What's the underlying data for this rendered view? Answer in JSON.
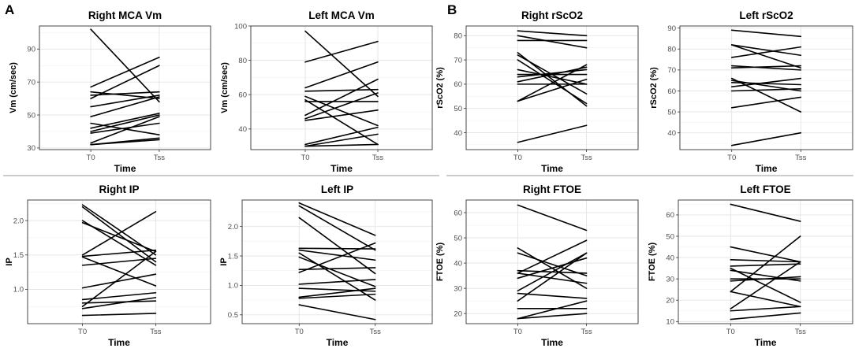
{
  "panel_labels": [
    "A",
    "B"
  ],
  "chart_data": [
    {
      "type": "line",
      "title": "Right MCA Vm",
      "xlabel": "Time",
      "ylabel": "Vm (cm/sec)",
      "x": [
        "T0",
        "Tss"
      ],
      "ylim": [
        29,
        104
      ],
      "yticks": [
        30,
        50,
        70,
        90
      ],
      "series": [
        [
          102,
          58
        ],
        [
          67,
          85
        ],
        [
          64,
          60
        ],
        [
          62,
          64
        ],
        [
          60,
          80
        ],
        [
          55,
          62
        ],
        [
          49,
          61
        ],
        [
          45,
          38
        ],
        [
          42,
          51
        ],
        [
          40,
          50
        ],
        [
          39,
          45
        ],
        [
          33,
          49
        ],
        [
          32,
          36
        ],
        [
          32,
          35
        ]
      ]
    },
    {
      "type": "line",
      "title": "Left MCA Vm",
      "xlabel": "Time",
      "ylabel": "Vm (cm/sec)",
      "x": [
        "T0",
        "Tss"
      ],
      "ylim": [
        28,
        100
      ],
      "yticks": [
        40,
        60,
        80,
        100
      ],
      "series": [
        [
          97,
          59
        ],
        [
          79,
          91
        ],
        [
          64,
          79
        ],
        [
          62,
          63
        ],
        [
          59,
          42
        ],
        [
          57,
          31
        ],
        [
          56,
          56
        ],
        [
          48,
          69
        ],
        [
          46,
          61
        ],
        [
          45,
          51
        ],
        [
          31,
          41
        ],
        [
          30,
          37
        ],
        [
          30,
          31
        ]
      ]
    },
    {
      "type": "line",
      "title": "Right rScO2",
      "xlabel": "Time",
      "ylabel": "rScO2 (%)",
      "x": [
        "T0",
        "Tss"
      ],
      "ylim": [
        33,
        84
      ],
      "yticks": [
        40,
        50,
        60,
        70,
        80
      ],
      "series": [
        [
          82,
          80
        ],
        [
          80,
          75
        ],
        [
          78,
          78
        ],
        [
          73,
          51
        ],
        [
          72,
          56
        ],
        [
          70,
          52
        ],
        [
          66,
          60
        ],
        [
          64,
          64
        ],
        [
          63,
          66
        ],
        [
          61,
          67
        ],
        [
          60,
          60
        ],
        [
          53,
          68
        ],
        [
          53,
          62
        ],
        [
          36,
          43
        ]
      ]
    },
    {
      "type": "line",
      "title": "Left rScO2",
      "xlabel": "Time",
      "ylabel": "rScO2 (%)",
      "x": [
        "T0",
        "Tss"
      ],
      "ylim": [
        32,
        91
      ],
      "yticks": [
        40,
        50,
        60,
        70,
        80,
        90
      ],
      "series": [
        [
          89,
          86
        ],
        [
          82,
          71
        ],
        [
          82,
          77
        ],
        [
          76,
          81
        ],
        [
          72,
          70
        ],
        [
          71,
          72
        ],
        [
          66,
          50
        ],
        [
          65,
          60
        ],
        [
          64,
          63
        ],
        [
          62,
          66
        ],
        [
          60,
          61
        ],
        [
          52,
          57
        ],
        [
          34,
          40
        ]
      ]
    },
    {
      "type": "line",
      "title": "Right IP",
      "xlabel": "Time",
      "ylabel": "IP",
      "x": [
        "T0",
        "Tss"
      ],
      "ylim": [
        0.5,
        2.3
      ],
      "yticks": [
        1.0,
        1.5,
        2.0
      ],
      "series": [
        [
          2.23,
          1.5
        ],
        [
          2.2,
          1.4
        ],
        [
          2.0,
          1.35
        ],
        [
          1.97,
          1.55
        ],
        [
          1.5,
          2.13
        ],
        [
          1.48,
          1.57
        ],
        [
          1.47,
          1.05
        ],
        [
          1.35,
          1.45
        ],
        [
          1.02,
          1.22
        ],
        [
          0.85,
          0.95
        ],
        [
          0.8,
          0.83
        ],
        [
          0.75,
          1.55
        ],
        [
          0.72,
          0.88
        ],
        [
          0.62,
          0.65
        ]
      ]
    },
    {
      "type": "line",
      "title": "Left IP",
      "xlabel": "Time",
      "ylabel": "IP",
      "x": [
        "T0",
        "Tss"
      ],
      "ylim": [
        0.35,
        2.45
      ],
      "yticks": [
        0.5,
        1.0,
        1.5,
        2.0
      ],
      "series": [
        [
          2.4,
          1.85
        ],
        [
          2.35,
          1.6
        ],
        [
          2.15,
          1.2
        ],
        [
          1.63,
          1.62
        ],
        [
          1.6,
          1.43
        ],
        [
          1.55,
          0.75
        ],
        [
          1.48,
          0.98
        ],
        [
          1.27,
          1.3
        ],
        [
          1.22,
          1.72
        ],
        [
          1.02,
          1.1
        ],
        [
          0.95,
          0.9
        ],
        [
          0.8,
          0.95
        ],
        [
          0.78,
          0.85
        ],
        [
          0.67,
          0.42
        ]
      ]
    },
    {
      "type": "line",
      "title": "Right FTOE",
      "xlabel": "Time",
      "ylabel": "FTOE (%)",
      "x": [
        "T0",
        "Tss"
      ],
      "ylim": [
        16,
        65
      ],
      "yticks": [
        20,
        30,
        40,
        50,
        60
      ],
      "series": [
        [
          63,
          53
        ],
        [
          46,
          30
        ],
        [
          44,
          35
        ],
        [
          37,
          36
        ],
        [
          36,
          32
        ],
        [
          36,
          49
        ],
        [
          34,
          42
        ],
        [
          29,
          44
        ],
        [
          28,
          26
        ],
        [
          25,
          44
        ],
        [
          22,
          22
        ],
        [
          18,
          25
        ],
        [
          18,
          20
        ]
      ]
    },
    {
      "type": "line",
      "title": "Left FTOE",
      "xlabel": "Time",
      "ylabel": "FTOE (%)",
      "x": [
        "T0",
        "Tss"
      ],
      "ylim": [
        9,
        67
      ],
      "yticks": [
        10,
        20,
        30,
        40,
        50,
        60
      ],
      "series": [
        [
          65,
          57
        ],
        [
          45,
          38
        ],
        [
          39,
          38
        ],
        [
          36,
          37
        ],
        [
          35,
          19
        ],
        [
          34,
          29
        ],
        [
          30,
          30
        ],
        [
          29,
          31
        ],
        [
          24,
          50
        ],
        [
          24,
          17
        ],
        [
          16,
          38
        ],
        [
          15,
          17
        ],
        [
          11,
          14
        ]
      ]
    }
  ]
}
